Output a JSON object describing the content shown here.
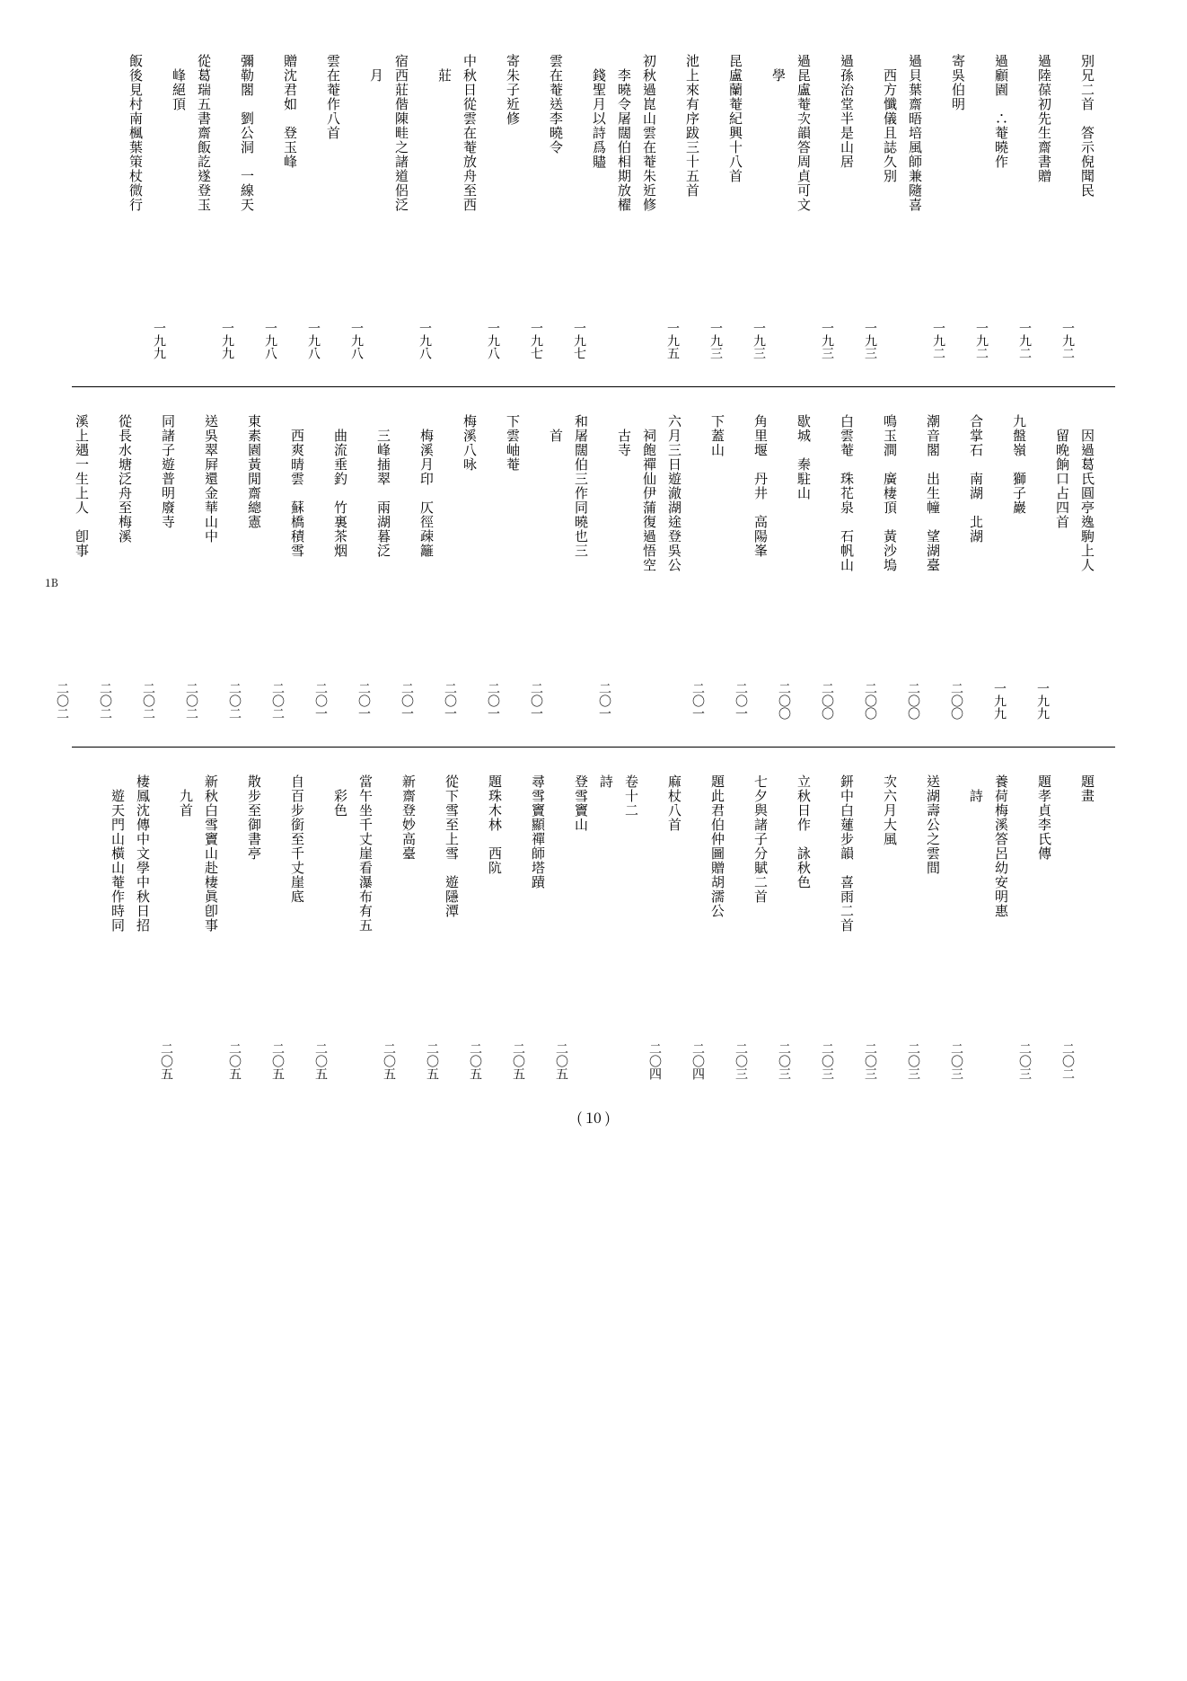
{
  "sections": [
    {
      "entries": [
        {
          "title": "別兄二首　答示倪聞民",
          "page": "一九二"
        },
        {
          "title": "過陸葆初先生齋書贈",
          "page": "一九二"
        },
        {
          "title": "過顧園　∴菴曉作",
          "page": "一九二"
        },
        {
          "title": "寄吳伯明",
          "page": "一九二"
        },
        {
          "title": "過貝葉齋晤培風師兼隨喜",
          "page": ""
        },
        {
          "title": "　西方懺儀且誌久別",
          "page": "一九三"
        },
        {
          "title": "過孫治堂半是山居",
          "page": "一九三"
        },
        {
          "title": "過昆盧菴次韻答周貞可文",
          "page": ""
        },
        {
          "title": "　學",
          "page": "一九三"
        },
        {
          "title": "昆盧蘭菴紀興十八首",
          "page": "一九三"
        },
        {
          "title": "池上來有序跋三十五首",
          "page": "一九五"
        },
        {
          "title": "初秋過崑山雲在菴朱近修",
          "page": ""
        },
        {
          "title": "　李曉令屠闊伯相期放櫂",
          "page": ""
        },
        {
          "title": "　錢聖月以詩爲贐",
          "page": "一九七"
        },
        {
          "title": "雲在菴送李曉令",
          "page": "一九七"
        },
        {
          "title": "寄朱子近修",
          "page": "一九八"
        },
        {
          "title": "中秋日從雲在菴放舟至西",
          "page": ""
        },
        {
          "title": "　莊",
          "page": "一九八"
        },
        {
          "title": "宿西莊偕陳畦之諸道侶泛",
          "page": ""
        },
        {
          "title": "　月",
          "page": "一九八"
        },
        {
          "title": "雲在菴作八首",
          "page": "一九八"
        },
        {
          "title": "贈沈君如　登玉峰",
          "page": "一九八"
        },
        {
          "title": "彌勒閣　劉公洞　一線天",
          "page": "一九九"
        },
        {
          "title": "從葛瑞五書齋飯訖遂登玉",
          "page": ""
        },
        {
          "title": "　峰絕頂",
          "page": "一九九"
        },
        {
          "title": "飯後見村南楓葉策杖微行",
          "page": ""
        }
      ]
    },
    {
      "entries": [
        {
          "title": "　因過葛氏圓亭逸駒上人",
          "page": ""
        },
        {
          "title": "　留晚餉口占四首",
          "page": "一九九"
        },
        {
          "title": "九盤嶺　獅子巖",
          "page": "一九九"
        },
        {
          "title": "合掌石　南湖　北湖",
          "page": "二〇〇"
        },
        {
          "title": "潮音閣　出生幢　望湖臺",
          "page": "二〇〇"
        },
        {
          "title": "鳴玉澗　廣棲頂　黃沙塢",
          "page": "二〇〇"
        },
        {
          "title": "白雲菴　珠花泉　石帆山",
          "page": "二〇〇"
        },
        {
          "title": "歇城　秦駐山",
          "page": "二〇〇"
        },
        {
          "title": "角里堰　丹井　高陽峯",
          "page": "二〇一"
        },
        {
          "title": "下蓋山",
          "page": "二〇一"
        },
        {
          "title": "六月三日遊澈湖途登吳公",
          "page": ""
        },
        {
          "title": "　祠飽禪仙伊蒲復過悟空",
          "page": ""
        },
        {
          "title": "　古寺",
          "page": "二〇一"
        },
        {
          "title": "和屠闊伯三作同曉也三",
          "page": ""
        },
        {
          "title": "　首",
          "page": "二〇一"
        },
        {
          "title": "下雲岫菴",
          "page": "二〇一"
        },
        {
          "title": "梅溪八咏",
          "page": "二〇一"
        },
        {
          "title": "　梅溪月印　仄徑疎籬",
          "page": "二〇一"
        },
        {
          "title": "　三峰插翠　兩湖暮泛",
          "page": "二〇一"
        },
        {
          "title": "　曲流垂釣　竹裏茶烟",
          "page": "二〇一"
        },
        {
          "title": "　西爽晴雲　蘇橋積雪",
          "page": "二〇二"
        },
        {
          "title": "東素園黃閒齋總憲",
          "page": "二〇二"
        },
        {
          "title": "送吳翠屛還金華山中",
          "page": "二〇二"
        },
        {
          "title": "同諸子遊普明廢寺",
          "page": "二〇二"
        },
        {
          "title": "從長水塘泛舟至梅溪",
          "page": "二〇二"
        },
        {
          "title": "溪上遇一生上人　卽事",
          "page": "二〇二"
        }
      ]
    },
    {
      "entries": [
        {
          "title": "題畫",
          "page": "二〇二"
        },
        {
          "title": "題孝貞李氏傳",
          "page": "二〇三"
        },
        {
          "title": "養荷梅溪答呂幼安明惠",
          "page": ""
        },
        {
          "title": "　詩",
          "page": "二〇三"
        },
        {
          "title": "送湖壽公之雲間",
          "page": "二〇三"
        },
        {
          "title": "次六月大風",
          "page": "二〇三"
        },
        {
          "title": "鈃中白蓮步韻　喜雨二首",
          "page": "二〇三"
        },
        {
          "title": "立秋日作　詠秋色",
          "page": "二〇三"
        },
        {
          "title": "七夕與諸子分賦二首",
          "page": "二〇三"
        },
        {
          "title": "題此君伯仲圖贈胡濡公",
          "page": "二〇四"
        },
        {
          "title": "麻杖八首",
          "page": "二〇四"
        },
        {
          "title": "卷十二",
          "page": ""
        },
        {
          "title": "詩",
          "page": ""
        },
        {
          "title": "登雪竇山",
          "page": "二〇五"
        },
        {
          "title": "尋雪竇顯禪師塔蹟",
          "page": "二〇五"
        },
        {
          "title": "題珠木林　西阬",
          "page": "二〇五"
        },
        {
          "title": "從下雪至上雪　遊隱潭",
          "page": "二〇五"
        },
        {
          "title": "新齋登妙高臺",
          "page": "二〇五"
        },
        {
          "title": "當午坐千丈崖看瀑布有五",
          "page": ""
        },
        {
          "title": "　彩色",
          "page": "二〇五"
        },
        {
          "title": "自百步銜至千丈崖底",
          "page": "二〇五"
        },
        {
          "title": "散步至御書亭",
          "page": "二〇五"
        },
        {
          "title": "新秋白雪竇山赴棲眞卽事",
          "page": ""
        },
        {
          "title": "　九首",
          "page": "二〇五"
        },
        {
          "title": "棲鳳沈傳中文學中秋日招",
          "page": ""
        },
        {
          "title": "　遊天門山橫山菴作時同",
          "page": ""
        }
      ]
    }
  ],
  "pageNumber": "( 10 )",
  "sideMarker": "1B"
}
